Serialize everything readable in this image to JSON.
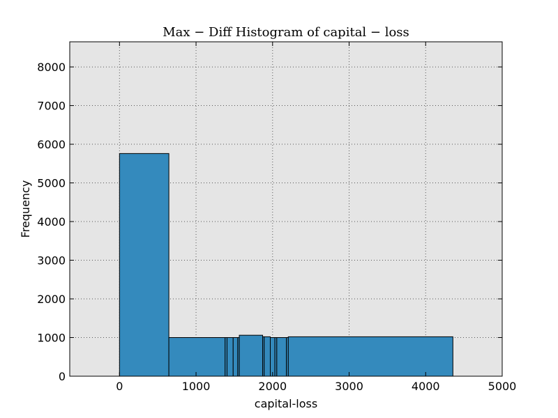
{
  "chart_data": {
    "type": "bar",
    "title": "Max − Diff Histogram of capital − loss",
    "xlabel": "capital-loss",
    "ylabel": "Frequency",
    "xlim": [
      -650,
      5000
    ],
    "ylim": [
      0,
      8650
    ],
    "xticks": [
      0,
      1000,
      2000,
      3000,
      4000,
      5000
    ],
    "yticks": [
      0,
      1000,
      2000,
      3000,
      4000,
      5000,
      6000,
      7000,
      8000
    ],
    "grid": true,
    "bar_color": "#348abd",
    "plot_background": "#e5e5e5",
    "bins": [
      {
        "start": 0,
        "end": 645,
        "value": 5760
      },
      {
        "start": 645,
        "end": 1380,
        "value": 1000
      },
      {
        "start": 1380,
        "end": 1405,
        "value": 1000
      },
      {
        "start": 1405,
        "end": 1485,
        "value": 1000
      },
      {
        "start": 1485,
        "end": 1545,
        "value": 1000
      },
      {
        "start": 1545,
        "end": 1565,
        "value": 1000
      },
      {
        "start": 1565,
        "end": 1870,
        "value": 1060
      },
      {
        "start": 1870,
        "end": 1890,
        "value": 1020
      },
      {
        "start": 1890,
        "end": 1970,
        "value": 1020
      },
      {
        "start": 1970,
        "end": 2030,
        "value": 1000
      },
      {
        "start": 2030,
        "end": 2055,
        "value": 1000
      },
      {
        "start": 2055,
        "end": 2180,
        "value": 1000
      },
      {
        "start": 2180,
        "end": 2205,
        "value": 1000
      },
      {
        "start": 2205,
        "end": 4356,
        "value": 1020
      }
    ]
  }
}
